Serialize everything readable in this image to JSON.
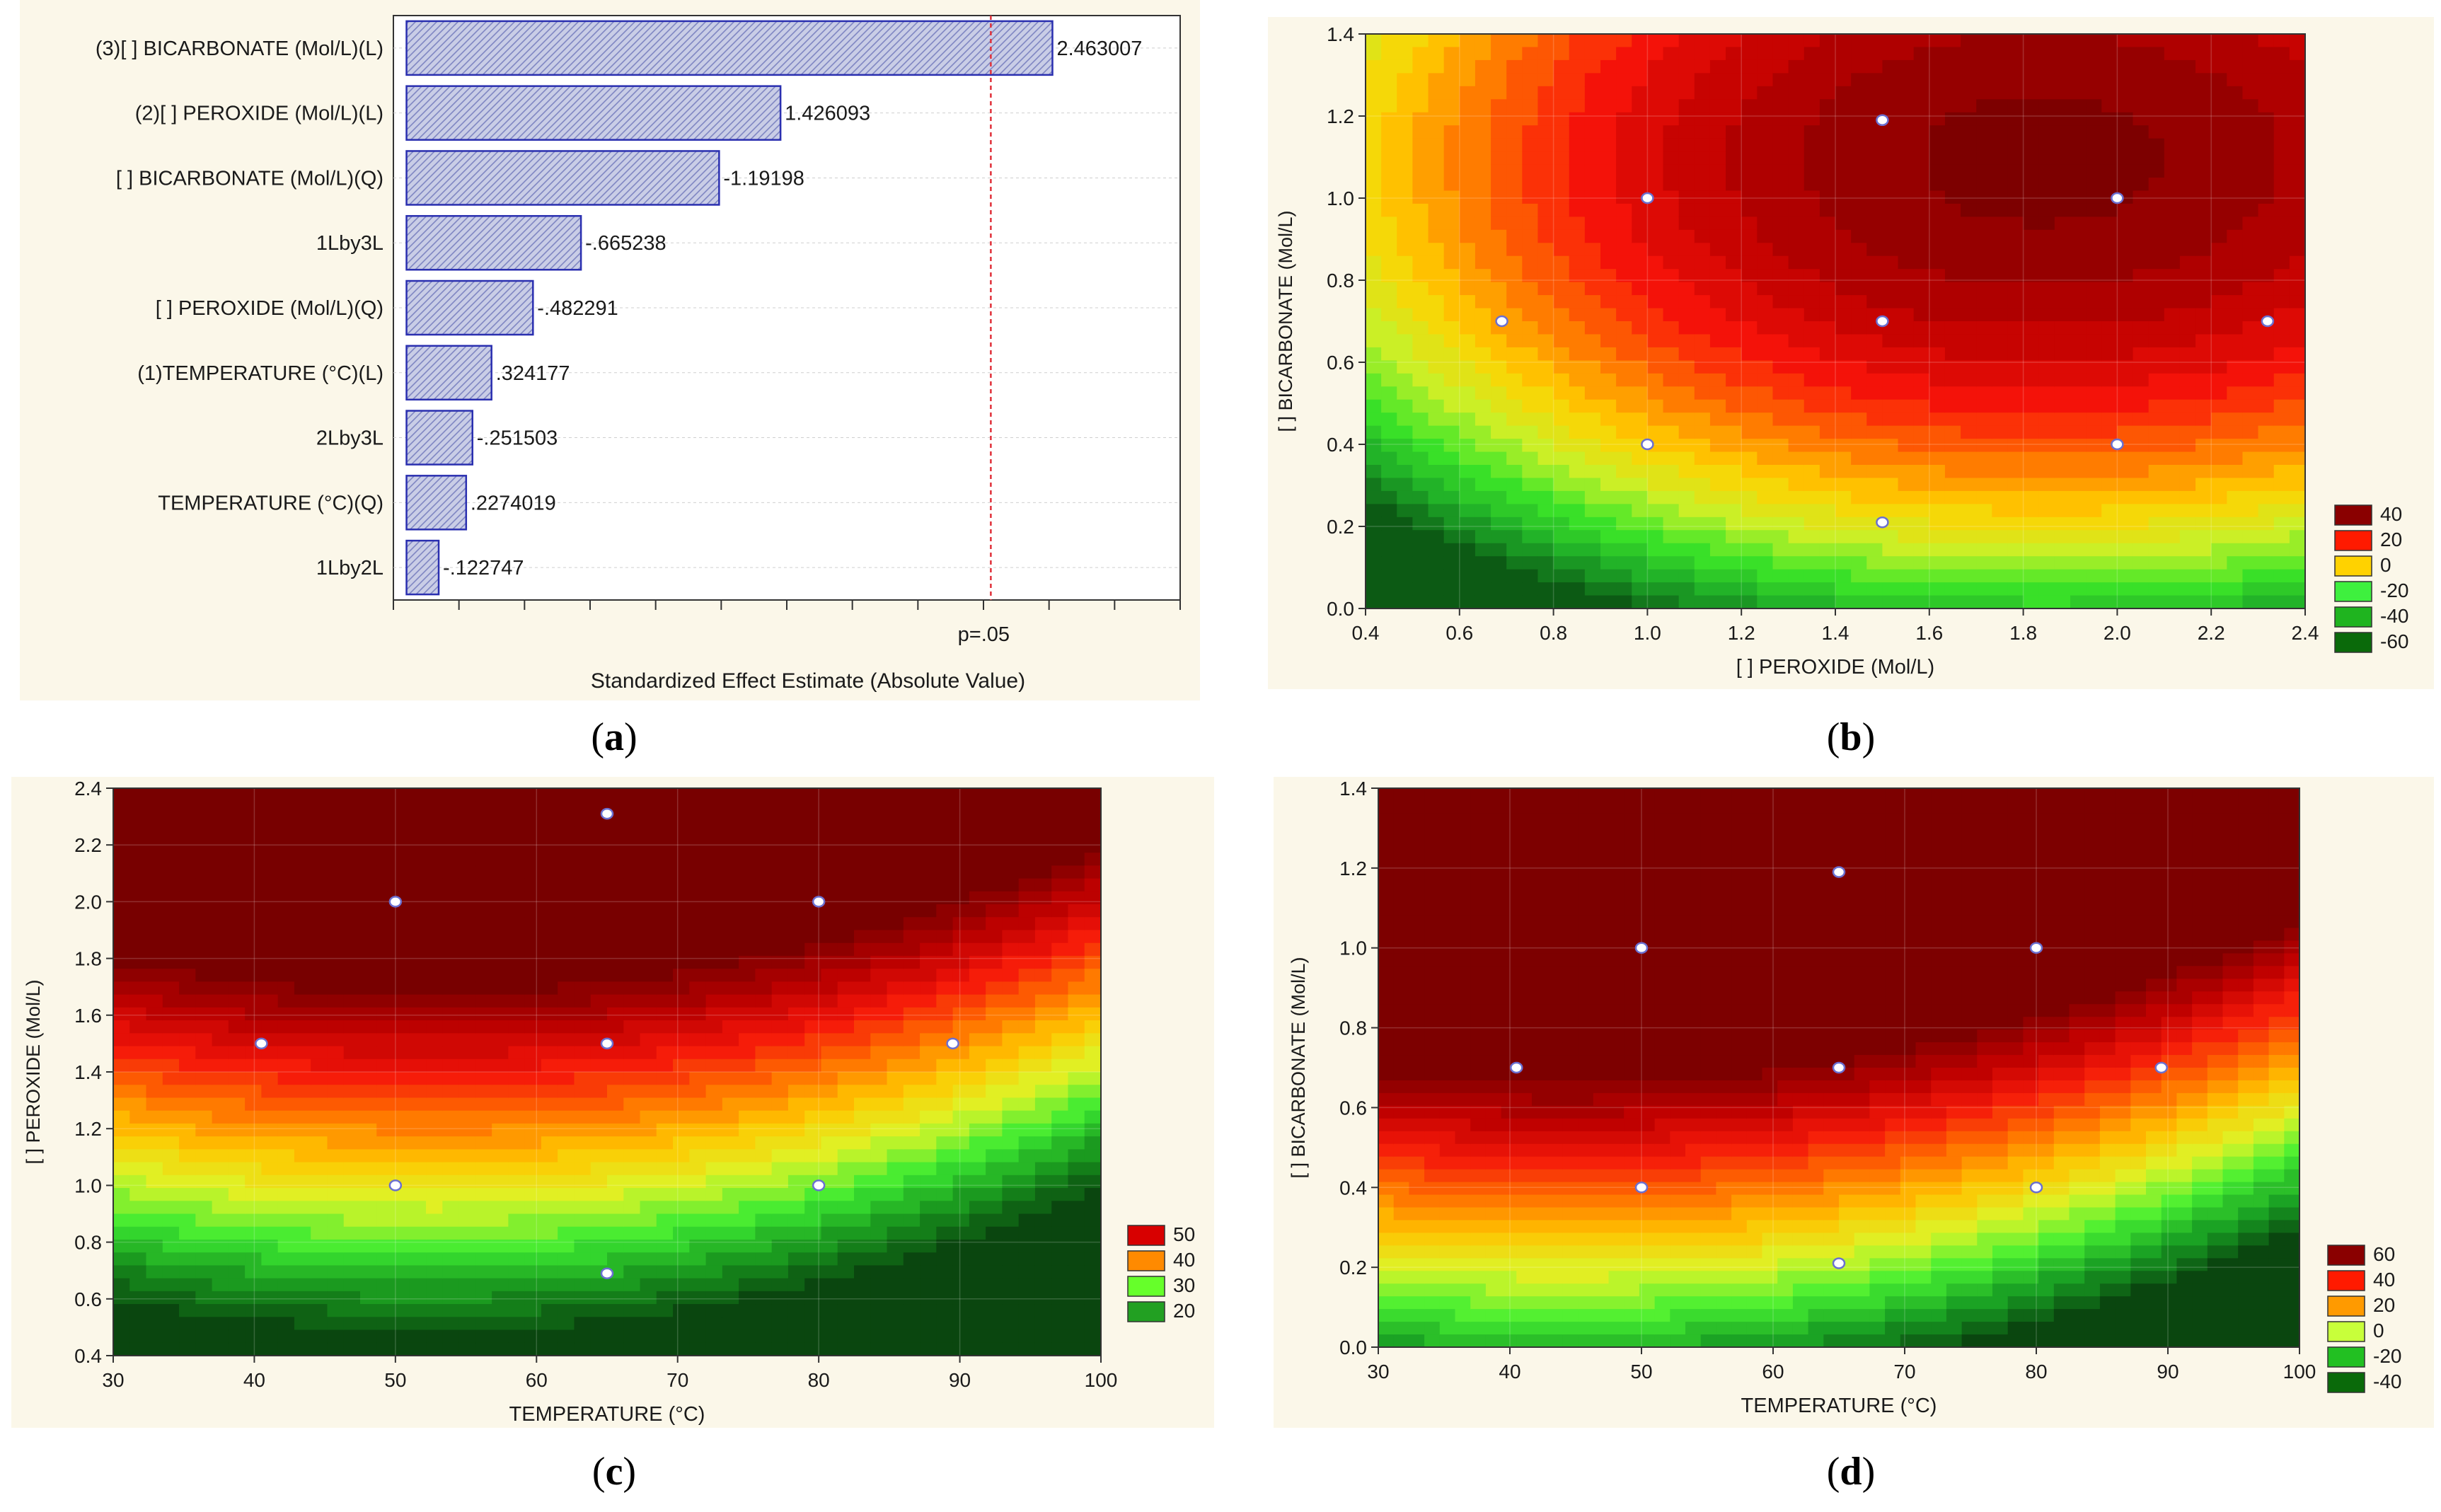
{
  "captions": [
    "a",
    "b",
    "c",
    "d"
  ],
  "chart_data": [
    {
      "id": "a",
      "type": "bar",
      "orientation": "horizontal",
      "categories": [
        "(3)[ ] BICARBONATE (Mol/L)(L)",
        "(2)[ ] PEROXIDE (Mol/L)(L)",
        "[ ] BICARBONATE (Mol/L)(Q)",
        "1Lby3L",
        "[ ] PEROXIDE (Mol/L)(Q)",
        "(1)TEMPERATURE (°C)(L)",
        "2Lby3L",
        "TEMPERATURE (°C)(Q)",
        "1Lby2L"
      ],
      "values": [
        2.463007,
        1.426093,
        1.19198,
        0.665238,
        0.482291,
        0.324177,
        0.251503,
        0.2274019,
        0.122747
      ],
      "value_labels": [
        "2.463007",
        "1.426093",
        "-1.19198",
        "-.665238",
        "-.482291",
        ".324177",
        "-.251503",
        ".2274019",
        "-.122747"
      ],
      "xlabel": "Standardized Effect Estimate (Absolute Value)",
      "reference_line": {
        "value": 2.228,
        "label": "p=.05"
      },
      "xlim": [
        -0.05,
        2.95
      ],
      "grid": true
    },
    {
      "id": "b",
      "type": "contour",
      "xlabel": "[ ] PEROXIDE (Mol/L)",
      "ylabel": "[ ] BICARBONATE (Mol/L)",
      "xlim": [
        0.4,
        2.4
      ],
      "ylim": [
        0.0,
        1.4
      ],
      "xticks": [
        "0.4",
        "0.6",
        "0.8",
        "1.0",
        "1.2",
        "1.4",
        "1.6",
        "1.8",
        "2.0",
        "2.2",
        "2.4"
      ],
      "yticks": [
        "0.0",
        "0.2",
        "0.4",
        "0.6",
        "0.8",
        "1.0",
        "1.2",
        "1.4"
      ],
      "legend": [
        "40",
        "20",
        "0",
        "-20",
        "-40",
        "-60"
      ],
      "legend_colors": [
        "#8a0000",
        "#ff1a00",
        "#ffd200",
        "#3ef03e",
        "#1fb41f",
        "#0a6a0a"
      ],
      "points": [
        [
          1.5,
          1.19
        ],
        [
          1.0,
          1.0
        ],
        [
          2.0,
          1.0
        ],
        [
          0.69,
          0.7
        ],
        [
          1.5,
          0.7
        ],
        [
          2.32,
          0.7
        ],
        [
          1.0,
          0.4
        ],
        [
          2.0,
          0.4
        ],
        [
          1.5,
          0.21
        ]
      ]
    },
    {
      "id": "c",
      "type": "contour",
      "xlabel": "TEMPERATURE (°C)",
      "ylabel": "[ ] PEROXIDE (Mol/L)",
      "xlim": [
        30,
        100
      ],
      "ylim": [
        0.4,
        2.4
      ],
      "xticks": [
        "30",
        "40",
        "50",
        "60",
        "70",
        "80",
        "90",
        "100"
      ],
      "yticks": [
        "0.4",
        "0.6",
        "0.8",
        "1.0",
        "1.2",
        "1.4",
        "1.6",
        "1.8",
        "2.0",
        "2.2",
        "2.4"
      ],
      "legend": [
        "50",
        "40",
        "30",
        "20"
      ],
      "legend_colors": [
        "#d80000",
        "#ff8a00",
        "#66ff2a",
        "#22a022"
      ],
      "points": [
        [
          65,
          2.31
        ],
        [
          50,
          2.0
        ],
        [
          80,
          2.0
        ],
        [
          40.5,
          1.5
        ],
        [
          65,
          1.5
        ],
        [
          89.5,
          1.5
        ],
        [
          50,
          1.0
        ],
        [
          80,
          1.0
        ],
        [
          65,
          0.69
        ]
      ]
    },
    {
      "id": "d",
      "type": "contour",
      "xlabel": "TEMPERATURE (°C)",
      "ylabel": "[ ] BICARBONATE (Mol/L)",
      "xlim": [
        30,
        100
      ],
      "ylim": [
        0.0,
        1.4
      ],
      "xticks": [
        "30",
        "40",
        "50",
        "60",
        "70",
        "80",
        "90",
        "100"
      ],
      "yticks": [
        "0.0",
        "0.2",
        "0.4",
        "0.6",
        "0.8",
        "1.0",
        "1.2",
        "1.4"
      ],
      "legend": [
        "60",
        "40",
        "20",
        "0",
        "-20",
        "-40"
      ],
      "legend_colors": [
        "#8a0000",
        "#ff1a00",
        "#ff9a00",
        "#c8ff3a",
        "#22c022",
        "#0a6a0a"
      ],
      "points": [
        [
          65,
          1.19
        ],
        [
          50,
          1.0
        ],
        [
          80,
          1.0
        ],
        [
          40.5,
          0.7
        ],
        [
          65,
          0.7
        ],
        [
          89.5,
          0.7
        ],
        [
          50,
          0.4
        ],
        [
          80,
          0.4
        ],
        [
          65,
          0.21
        ]
      ]
    }
  ]
}
